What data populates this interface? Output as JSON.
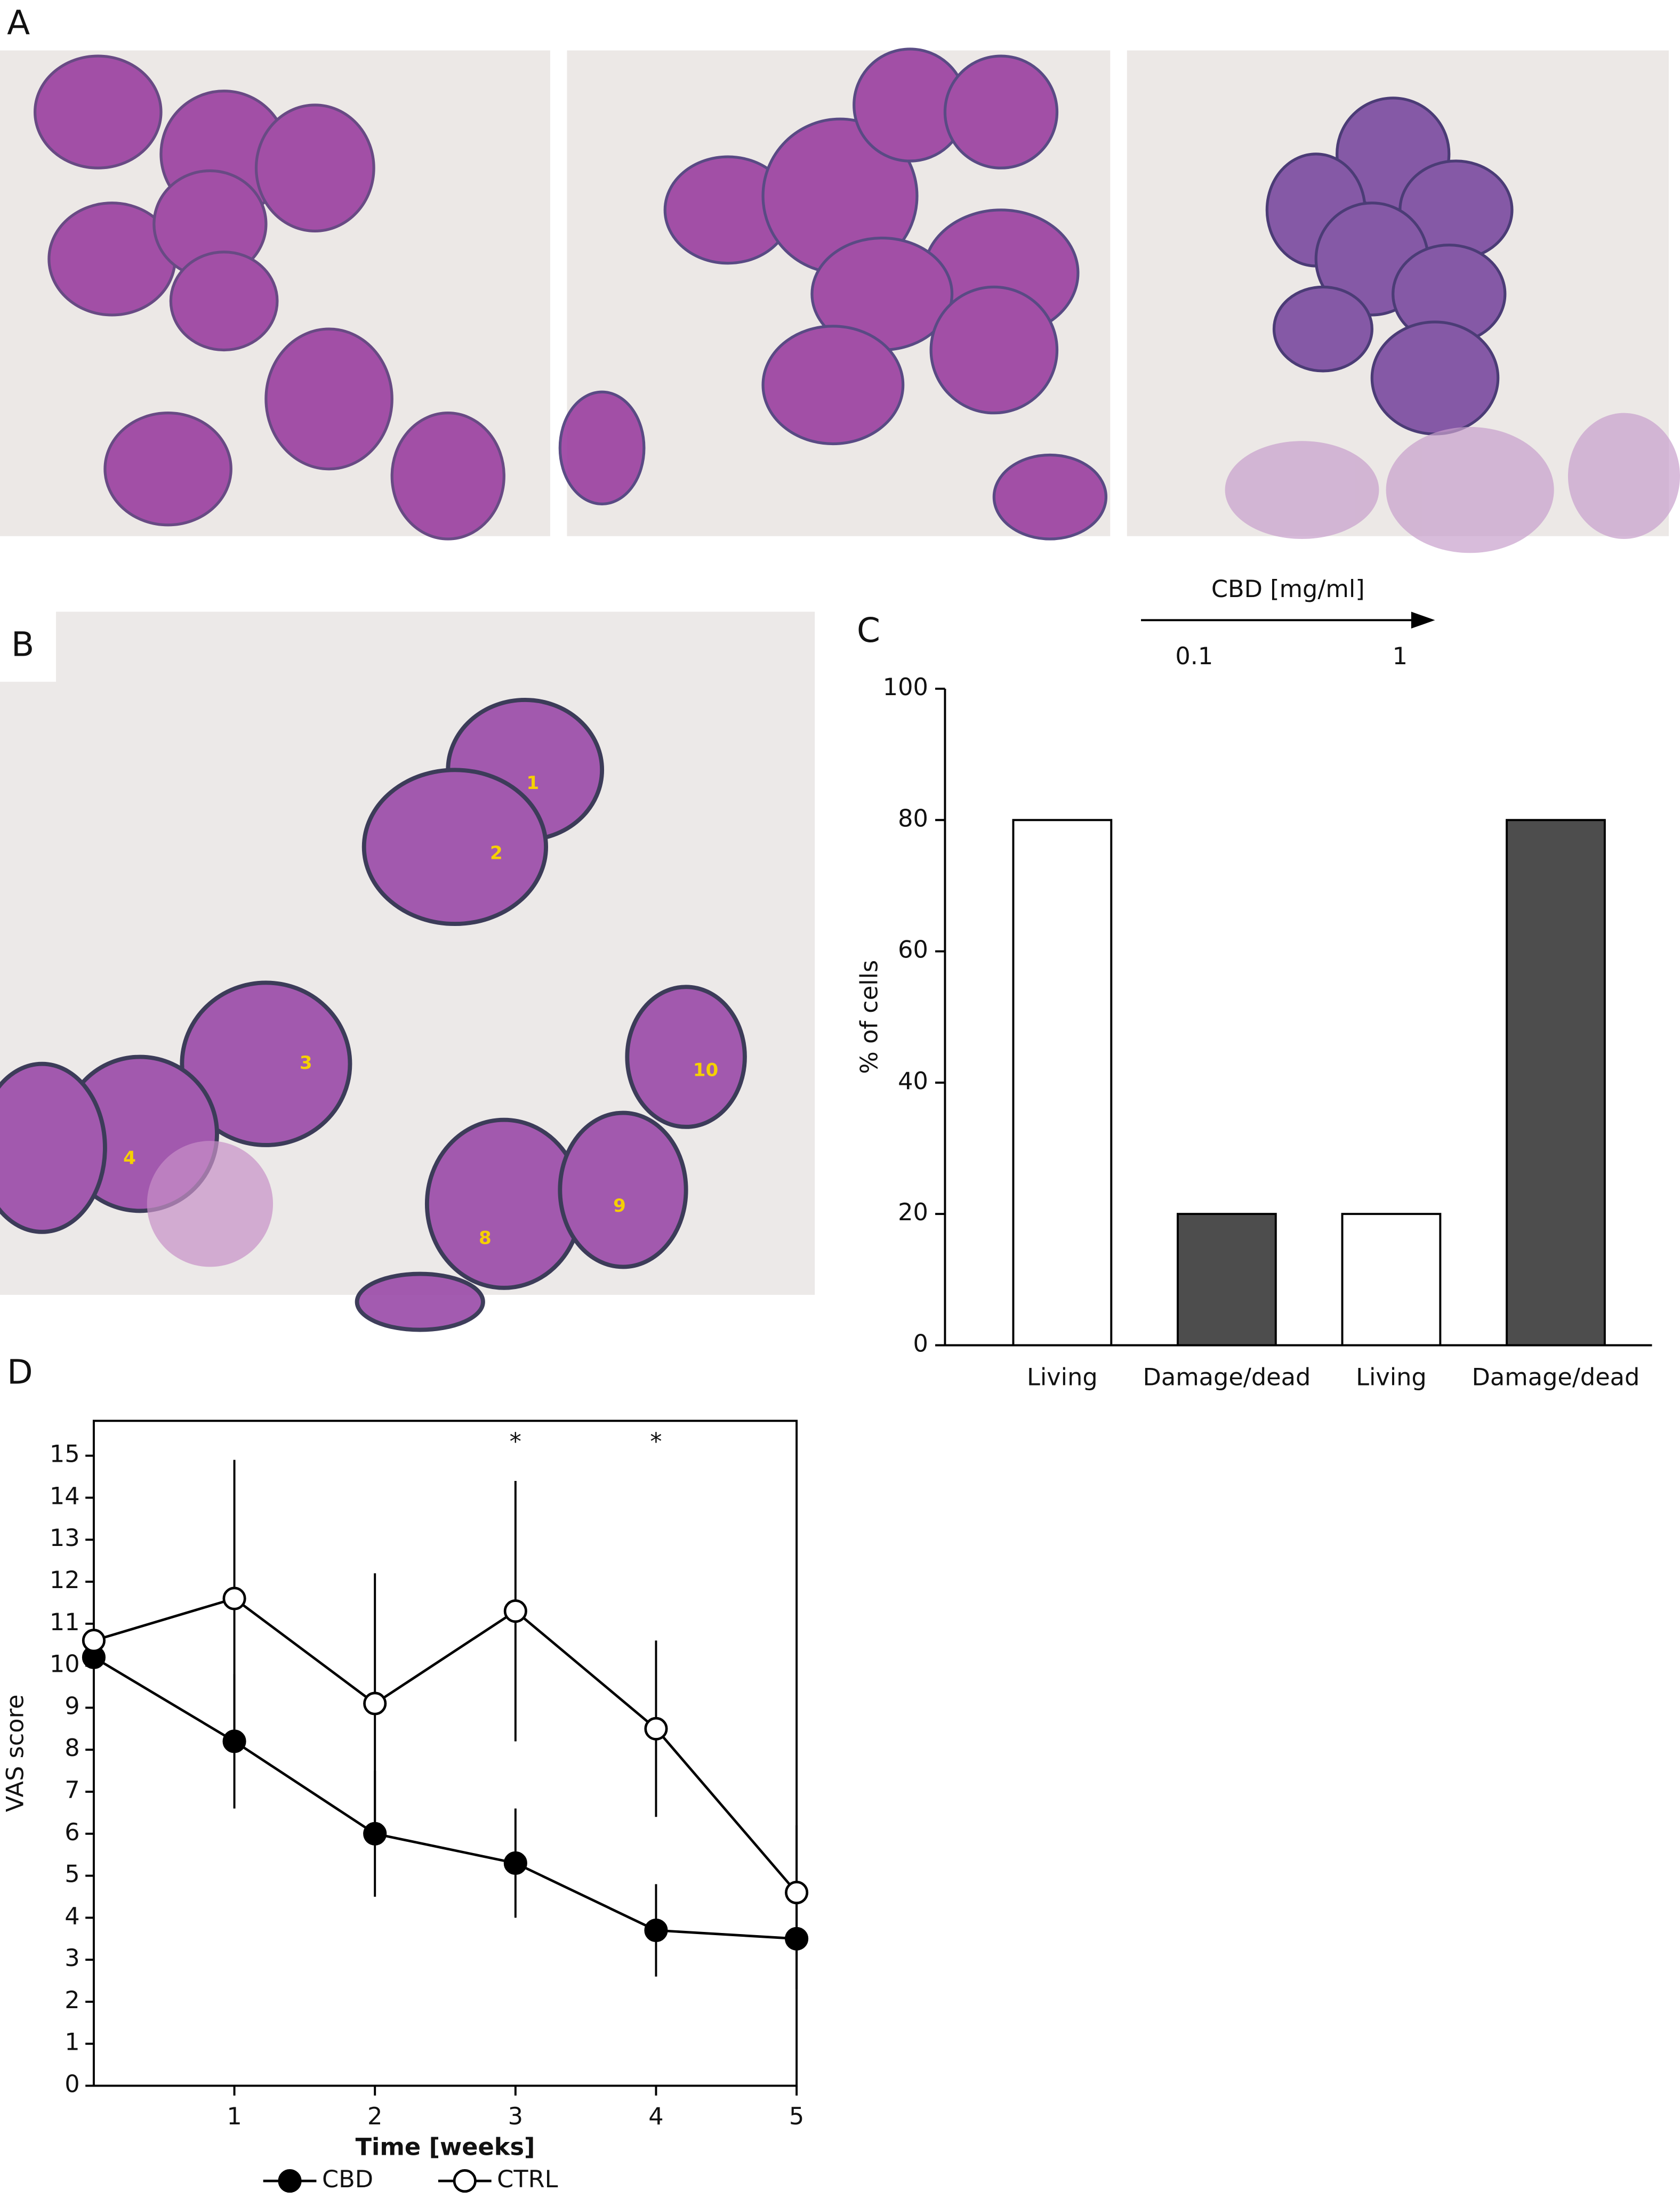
{
  "panel_labels": [
    "A",
    "B",
    "C",
    "D"
  ],
  "micrograph_labels": [
    "1",
    "2",
    "3",
    "4",
    "8",
    "9",
    "10"
  ],
  "chart_data": [
    {
      "type": "bar",
      "categories": [
        "Living",
        "Damage/dead",
        "Living",
        "Damage/dead"
      ],
      "values": [
        80,
        20,
        20,
        80
      ],
      "colors": [
        "#ffffff",
        "#4d4d4d",
        "#ffffff",
        "#4d4d4d"
      ],
      "ylabel": "% of cells",
      "ylim": [
        0,
        100
      ],
      "yticks": [
        0,
        20,
        40,
        60,
        80,
        100
      ],
      "annotation": {
        "text": "CBD [mg/ml]",
        "levels": [
          "0.1",
          "1"
        ]
      }
    },
    {
      "type": "line",
      "x": [
        0,
        1,
        2,
        3,
        4,
        5
      ],
      "xlim": [
        0,
        5
      ],
      "xticks": [
        1,
        2,
        3,
        4,
        5
      ],
      "ylim": [
        0,
        15.83
      ],
      "yticks": [
        0,
        1,
        2,
        3,
        4,
        5,
        6,
        7,
        8,
        9,
        10,
        11,
        12,
        13,
        14,
        15
      ],
      "xlabel": "Time [weeks]",
      "ylabel": "VAS score",
      "legend": "bottom",
      "series": [
        {
          "name": "CBD",
          "color": "#000000",
          "values": [
            10.2,
            8.2,
            6.0,
            5.3,
            3.7,
            3.5
          ],
          "errors": [
            0,
            1.6,
            1.5,
            1.3,
            1.1,
            1.2
          ]
        },
        {
          "name": "CTRL",
          "color": "#ffffff",
          "values": [
            10.6,
            11.6,
            9.1,
            11.3,
            8.5,
            4.6
          ],
          "errors": [
            0,
            3.3,
            3.1,
            3.1,
            2.1,
            1.6
          ]
        }
      ],
      "annotations": [
        {
          "x": 3,
          "text": "*"
        },
        {
          "x": 4,
          "text": "*"
        }
      ]
    }
  ]
}
